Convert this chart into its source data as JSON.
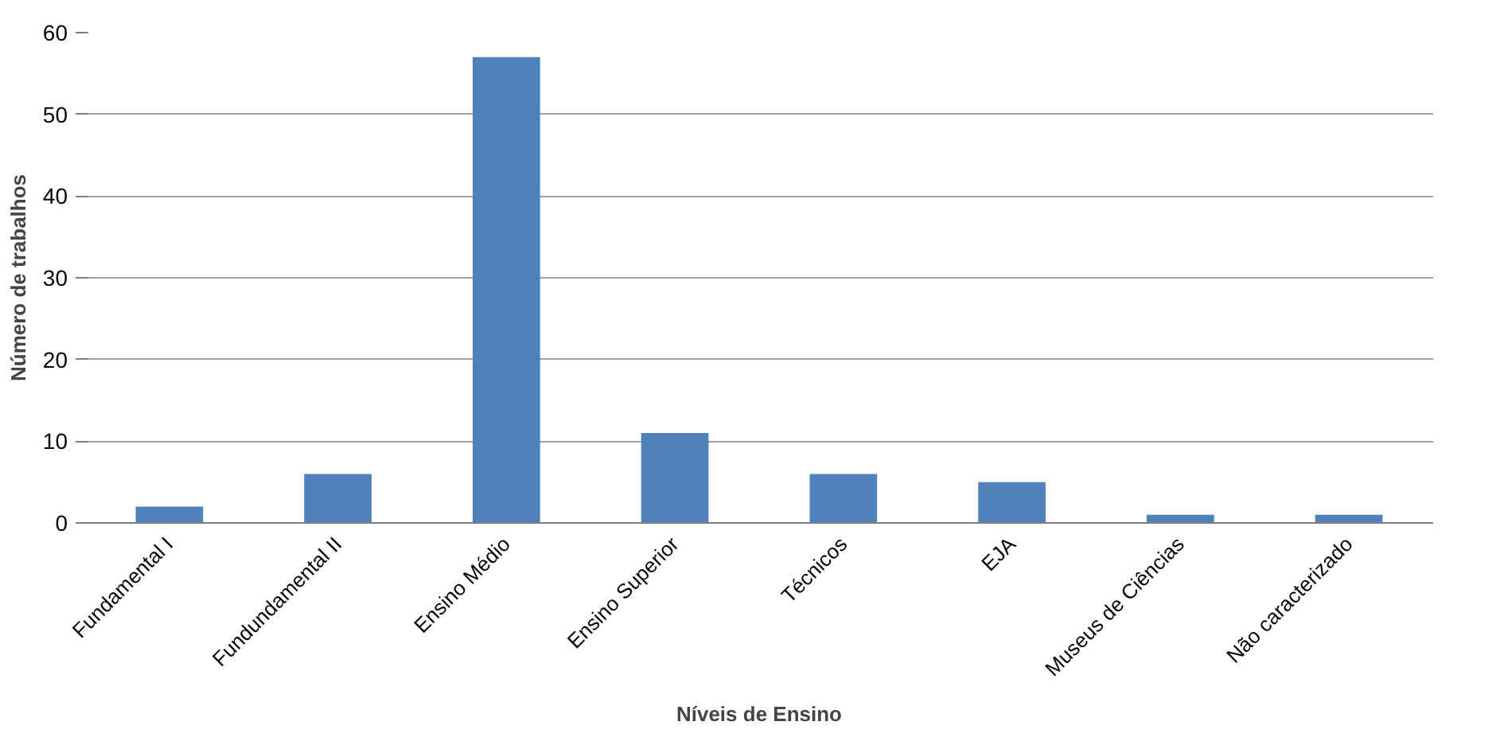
{
  "chart_data": {
    "type": "bar",
    "xlabel": "Níveis de Ensino",
    "ylabel": "Número de trabalhos",
    "categories": [
      "Fundamental I",
      "Fundundamental II",
      "Ensino Médio",
      "Ensino Superior",
      "Técnicos",
      "EJA",
      "Museus de Ciências",
      "Não caracterizado"
    ],
    "values": [
      2,
      6,
      57,
      11,
      6,
      5,
      1,
      1
    ],
    "color": "#4f81bd",
    "ylim": [
      0,
      60
    ],
    "yticks": [
      0,
      10,
      20,
      30,
      40,
      50,
      60
    ],
    "grid": "y"
  }
}
